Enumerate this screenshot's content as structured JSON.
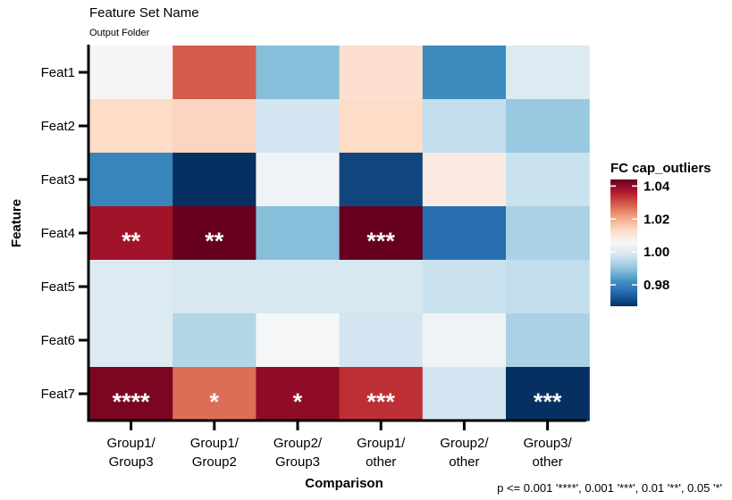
{
  "chart_data": {
    "type": "heatmap",
    "title": "Feature Set Name",
    "subtitle": "Output Folder",
    "xlabel": "Comparison",
    "ylabel": "Feature",
    "x_categories": [
      [
        "Group1/",
        "Group3"
      ],
      [
        "Group1/",
        "Group2"
      ],
      [
        "Group2/",
        "Group3"
      ],
      [
        "Group1/",
        "other"
      ],
      [
        "Group2/",
        "other"
      ],
      [
        "Group3/",
        "other"
      ]
    ],
    "y_categories": [
      "Feat1",
      "Feat2",
      "Feat3",
      "Feat4",
      "Feat5",
      "Feat6",
      "Feat7"
    ],
    "values": [
      [
        1.006,
        1.029,
        0.989,
        1.012,
        0.981,
        1.0
      ],
      [
        1.013,
        1.014,
        0.998,
        1.013,
        0.996,
        0.991
      ],
      [
        0.98,
        0.967,
        1.004,
        0.97,
        1.009,
        0.997
      ],
      [
        1.038,
        1.044,
        0.989,
        1.044,
        0.976,
        0.993
      ],
      [
        1.0,
        0.999,
        0.999,
        0.999,
        0.997,
        0.996
      ],
      [
        1.0,
        0.994,
        1.005,
        0.998,
        1.004,
        0.993
      ],
      [
        1.042,
        1.027,
        1.04,
        1.034,
        0.998,
        0.966
      ]
    ],
    "significance": [
      [
        "",
        "",
        "",
        "",
        "",
        ""
      ],
      [
        "",
        "",
        "",
        "",
        "",
        ""
      ],
      [
        "",
        "",
        "",
        "",
        "",
        ""
      ],
      [
        "**",
        "**",
        "",
        "***",
        "",
        ""
      ],
      [
        "",
        "",
        "",
        "",
        "",
        ""
      ],
      [
        "",
        "",
        "",
        "",
        "",
        ""
      ],
      [
        "****",
        "*",
        "*",
        "***",
        "",
        "***"
      ]
    ],
    "legend": {
      "title": "FC cap_outliers",
      "ticks": [
        1.04,
        1.02,
        1.0,
        0.98
      ],
      "tick_labels": [
        "1.04",
        "1.02",
        "1.00",
        "0.98"
      ],
      "range": [
        0.967,
        1.044
      ],
      "placement": "right",
      "colors": [
        "#053061",
        "#2166ac",
        "#4393c3",
        "#92c5de",
        "#d1e5f0",
        "#f7f7f7",
        "#fddbc7",
        "#f4a582",
        "#d6604d",
        "#b2182b",
        "#67001f"
      ]
    },
    "caption": "p <= 0.001 '****', 0.001 '***', 0.01 '**', 0.05 '*'"
  }
}
